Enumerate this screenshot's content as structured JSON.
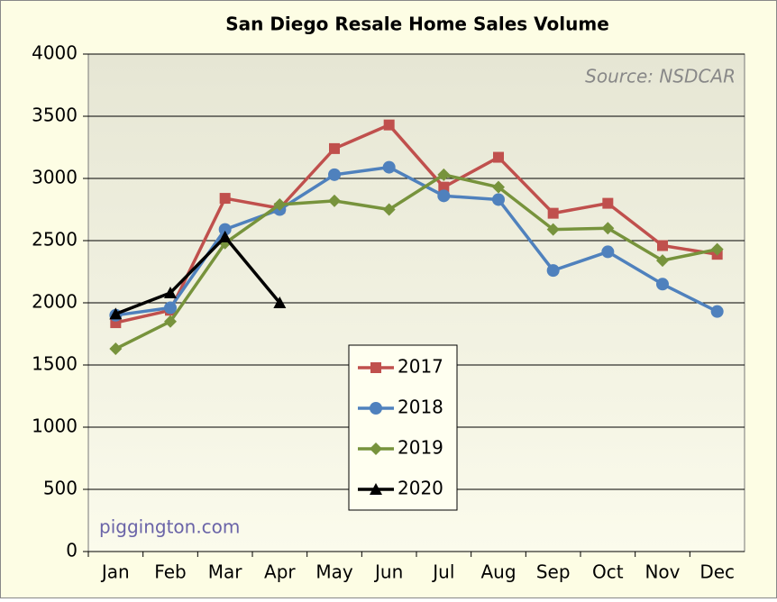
{
  "chart_data": {
    "type": "line",
    "title": "San Diego Resale Home Sales Volume",
    "source": "Source:  NSDCAR",
    "watermark": "piggington.com",
    "categories": [
      "Jan",
      "Feb",
      "Mar",
      "Apr",
      "May",
      "Jun",
      "Jul",
      "Aug",
      "Sep",
      "Oct",
      "Nov",
      "Dec"
    ],
    "series": [
      {
        "name": "2017",
        "color": "#c0504d",
        "marker": "square",
        "values": [
          1840,
          1940,
          2840,
          2760,
          3240,
          3430,
          2930,
          3170,
          2720,
          2800,
          2460,
          2390
        ]
      },
      {
        "name": "2018",
        "color": "#4f81bd",
        "marker": "circle",
        "values": [
          1900,
          1960,
          2590,
          2750,
          3030,
          3090,
          2860,
          2830,
          2260,
          2410,
          2150,
          1930
        ]
      },
      {
        "name": "2019",
        "color": "#77933c",
        "marker": "diamond",
        "values": [
          1630,
          1850,
          2480,
          2790,
          2820,
          2750,
          3030,
          2930,
          2590,
          2600,
          2340,
          2430
        ]
      },
      {
        "name": "2020",
        "color": "#000000",
        "marker": "triangle",
        "values": [
          1910,
          2080,
          2530,
          2000,
          null,
          null,
          null,
          null,
          null,
          null,
          null,
          null
        ]
      }
    ],
    "ylim": [
      0,
      4000
    ],
    "yticks": [
      0,
      500,
      1000,
      1500,
      2000,
      2500,
      3000,
      3500,
      4000
    ],
    "grid": true,
    "legend": "bottom-center"
  }
}
